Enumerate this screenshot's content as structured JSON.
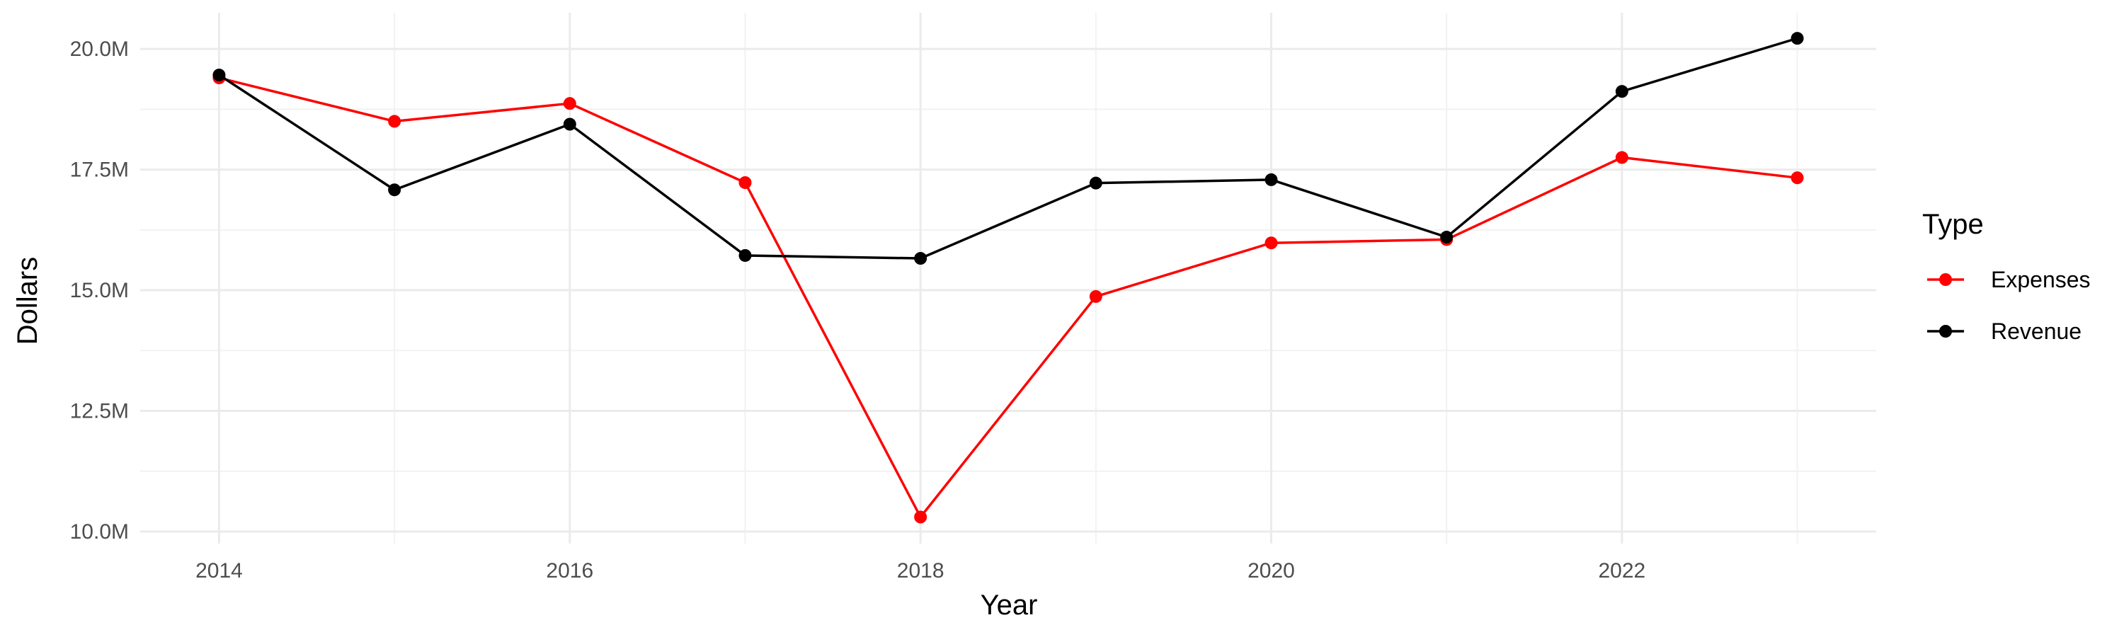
{
  "chart_data": {
    "type": "line",
    "x": [
      2014,
      2015,
      2016,
      2017,
      2018,
      2019,
      2020,
      2021,
      2022,
      2023
    ],
    "series": [
      {
        "name": "Expenses",
        "color": "#ff0000",
        "values": [
          19.4,
          18.5,
          18.87,
          17.23,
          10.3,
          14.87,
          15.98,
          16.05,
          17.75,
          17.33
        ]
      },
      {
        "name": "Revenue",
        "color": "#000000",
        "values": [
          19.46,
          17.08,
          18.44,
          15.72,
          15.66,
          17.22,
          17.29,
          16.1,
          19.12,
          20.22
        ]
      }
    ],
    "xlabel": "Year",
    "ylabel": "Dollars",
    "xlim": [
      2013.55,
      2023.45
    ],
    "ylim": [
      9.75,
      20.75
    ],
    "x_ticks": [
      2014,
      2016,
      2018,
      2020,
      2022
    ],
    "x_tick_labels": [
      "2014",
      "2016",
      "2018",
      "2020",
      "2022"
    ],
    "y_ticks": [
      10,
      12.5,
      15,
      17.5,
      20
    ],
    "y_tick_labels": [
      "10.0M",
      "12.5M",
      "15.0M",
      "17.5M",
      "20.0M"
    ],
    "grid": true,
    "legend": {
      "title": "Type",
      "position": "right",
      "entries": [
        "Expenses",
        "Revenue"
      ]
    }
  }
}
